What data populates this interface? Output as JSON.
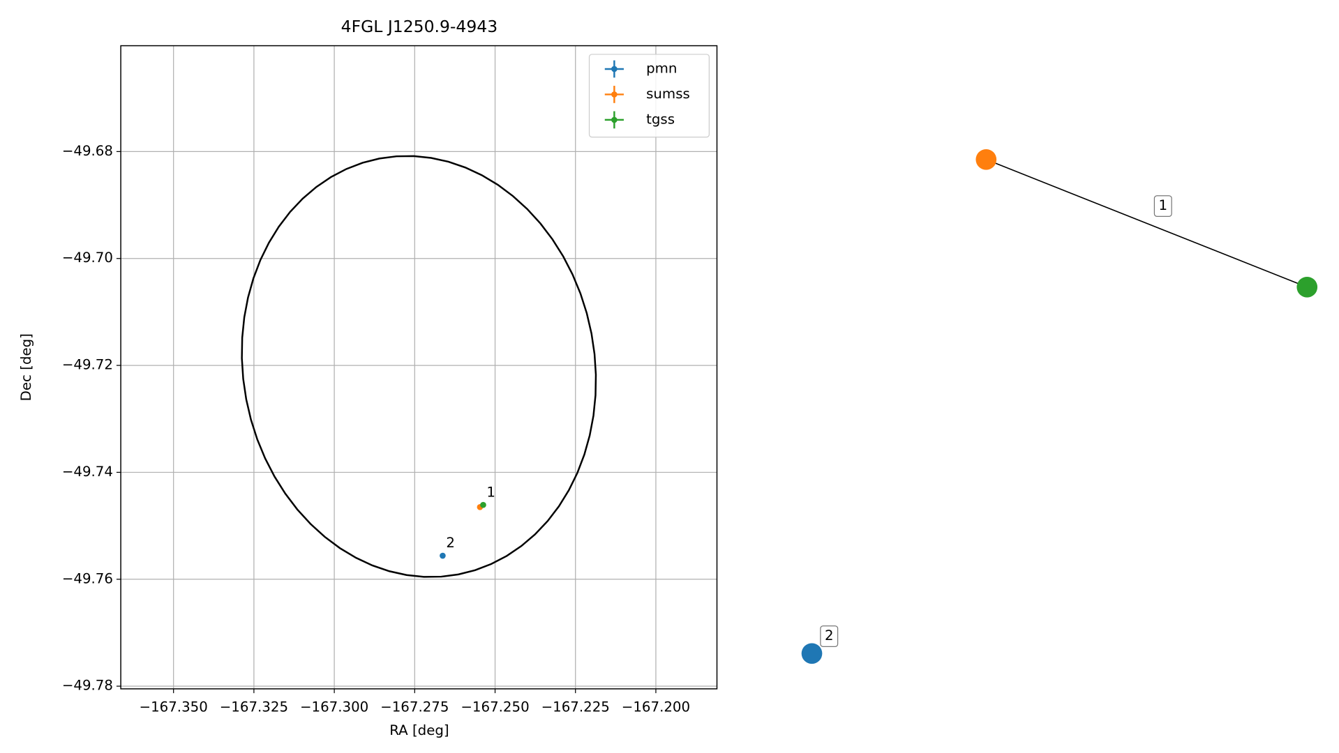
{
  "chart_data": [
    {
      "type": "scatter",
      "title": "4FGL J1250.9-4943",
      "x_label": "RA [deg]",
      "y_label": "Dec [deg]",
      "xlim": [
        -167.3664,
        -167.181
      ],
      "ylim": [
        -49.7805,
        -49.6602
      ],
      "grid": true,
      "legend": "upper right",
      "xticks": [
        {
          "value": -167.35,
          "label": "−167.350"
        },
        {
          "value": -167.325,
          "label": "−167.325"
        },
        {
          "value": -167.3,
          "label": "−167.300"
        },
        {
          "value": -167.275,
          "label": "−167.275"
        },
        {
          "value": -167.25,
          "label": "−167.250"
        },
        {
          "value": -167.225,
          "label": "−167.225"
        },
        {
          "value": -167.2,
          "label": "−167.200"
        }
      ],
      "yticks": [
        {
          "value": -49.68,
          "label": "−49.68"
        },
        {
          "value": -49.7,
          "label": "−49.70"
        },
        {
          "value": -49.72,
          "label": "−49.72"
        },
        {
          "value": -49.74,
          "label": "−49.74"
        },
        {
          "value": -49.76,
          "label": "−49.76"
        },
        {
          "value": -49.78,
          "label": "−49.78"
        }
      ],
      "series": [
        {
          "name": "pmn",
          "color": "#1f77b4",
          "x": [
            -167.2663
          ],
          "values": [
            -49.7556
          ]
        },
        {
          "name": "sumss",
          "color": "#ff7f0e",
          "x": [
            -167.2547
          ],
          "values": [
            -49.7465
          ]
        },
        {
          "name": "tgss",
          "color": "#2ca02c",
          "x": [
            -167.2537
          ],
          "values": [
            -49.7461
          ]
        }
      ],
      "annotations": [
        {
          "text": "1",
          "x": -167.2537,
          "y": -49.7461
        },
        {
          "text": "2",
          "x": -167.2663,
          "y": -49.7556
        }
      ],
      "ellipse": {
        "center": [
          -167.2737,
          -49.7202
        ],
        "width": 0.1104,
        "height": 0.0784,
        "angle": -5.6,
        "color": "#000000"
      }
    },
    {
      "type": "network",
      "nodes": [
        {
          "color": "#1f77b4",
          "label": "2"
        },
        {
          "color": "#ff7f0e"
        },
        {
          "color": "#2ca02c"
        }
      ],
      "edges": [
        {
          "nodes": [
            1,
            2
          ],
          "label": "1"
        }
      ]
    }
  ]
}
